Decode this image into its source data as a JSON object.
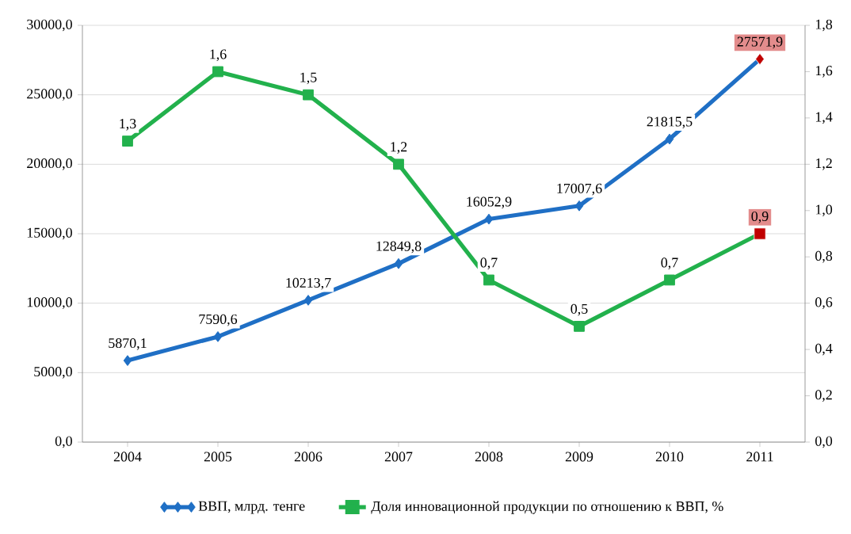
{
  "chart_data": {
    "type": "line",
    "categories": [
      "2004",
      "2005",
      "2006",
      "2007",
      "2008",
      "2009",
      "2010",
      "2011"
    ],
    "series": [
      {
        "name": "ВВП, млрд. тенге",
        "color": "#1f6fc5",
        "marker": "diamond",
        "axis": "y",
        "values": [
          5870.1,
          7590.6,
          10213.7,
          12849.8,
          16052.9,
          17007.6,
          21815.5,
          27571.9
        ],
        "colors": [
          "#1f6fc5",
          "#1f6fc5",
          "#1f6fc5",
          "#1f6fc5",
          "#1f6fc5",
          "#1f6fc5",
          "#1f6fc5",
          "#c00000"
        ],
        "value_labels": [
          "5870,1",
          "7590,6",
          "10213,7",
          "12849,8",
          "16052,9",
          "17007,6",
          "21815,5",
          "27571,9"
        ]
      },
      {
        "name": "Доля инновационной продукции по отношению к ВВП, %",
        "color": "#22b14c",
        "marker": "square",
        "axis": "y2",
        "values": [
          1.3,
          1.6,
          1.5,
          1.2,
          0.7,
          0.5,
          0.7,
          0.9
        ],
        "colors": [
          "#22b14c",
          "#22b14c",
          "#22b14c",
          "#22b14c",
          "#22b14c",
          "#22b14c",
          "#22b14c",
          "#c00000"
        ],
        "value_labels": [
          "1,3",
          "1,6",
          "1,5",
          "1,2",
          "0,7",
          "0,5",
          "0,7",
          "0,9"
        ]
      }
    ],
    "ylim": [
      0,
      30000
    ],
    "yticks": [
      {
        "value": 0,
        "label": "0,0"
      },
      {
        "value": 5000,
        "label": "5000,0"
      },
      {
        "value": 10000,
        "label": "10000,0"
      },
      {
        "value": 15000,
        "label": "15000,0"
      },
      {
        "value": 20000,
        "label": "20000,0"
      },
      {
        "value": 25000,
        "label": "25000,0"
      },
      {
        "value": 30000,
        "label": "30000,0"
      }
    ],
    "y2lim": [
      0,
      1.8
    ],
    "y2ticks": [
      {
        "value": 0,
        "label": "0,0"
      },
      {
        "value": 0.2,
        "label": "0,2"
      },
      {
        "value": 0.4,
        "label": "0,4"
      },
      {
        "value": 0.6,
        "label": "0,6"
      },
      {
        "value": 0.8,
        "label": "0,8"
      },
      {
        "value": 1.0,
        "label": "1,0"
      },
      {
        "value": 1.2,
        "label": "1,2"
      },
      {
        "value": 1.4,
        "label": "1,4"
      },
      {
        "value": 1.6,
        "label": "1,6"
      },
      {
        "value": 1.8,
        "label": "1,8"
      }
    ],
    "grid": "y",
    "legend": "bottom"
  }
}
